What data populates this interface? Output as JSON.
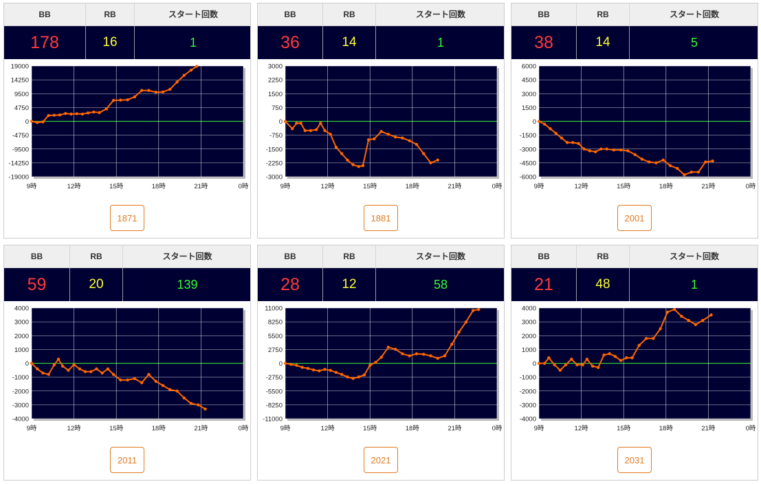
{
  "headers": {
    "bb": "BB",
    "rb": "RB",
    "start": "スタート回数"
  },
  "colors": {
    "bb": "#ff3b3b",
    "rb": "#ffff33",
    "start": "#33ff33",
    "series": "#ff6600",
    "zero_line": "#33cc33",
    "plot_bg": "#000033",
    "button": "#e07a1f"
  },
  "x_ticks": [
    "9時",
    "12時",
    "15時",
    "18時",
    "21時",
    "0時"
  ],
  "machines": [
    {
      "bb": "178",
      "rb": "16",
      "start": "1",
      "button": "1871"
    },
    {
      "bb": "36",
      "rb": "14",
      "start": "1",
      "button": "1881"
    },
    {
      "bb": "38",
      "rb": "14",
      "start": "5",
      "button": "2001"
    },
    {
      "bb": "59",
      "rb": "20",
      "start": "139",
      "button": "2011"
    },
    {
      "bb": "28",
      "rb": "12",
      "start": "58",
      "button": "2021"
    },
    {
      "bb": "21",
      "rb": "48",
      "start": "1",
      "button": "2031"
    }
  ],
  "chart_data": [
    {
      "type": "line",
      "x_unit": "hour",
      "xlim": [
        9,
        24
      ],
      "x_ticks": [
        "9時",
        "12時",
        "15時",
        "18時",
        "21時",
        "0時"
      ],
      "y_ticks": [
        "19000",
        "14250",
        "9500",
        "4750",
        "0",
        "-4750",
        "-9500",
        "-14250",
        "-19000"
      ],
      "ylim": [
        -19000,
        19000
      ],
      "series": [
        {
          "values": [
            [
              9,
              0
            ],
            [
              9.4,
              -400
            ],
            [
              9.8,
              -200
            ],
            [
              10.2,
              2000
            ],
            [
              10.6,
              2100
            ],
            [
              11,
              2200
            ],
            [
              11.4,
              2700
            ],
            [
              11.8,
              2500
            ],
            [
              12.2,
              2600
            ],
            [
              12.6,
              2500
            ],
            [
              13,
              2900
            ],
            [
              13.4,
              3200
            ],
            [
              13.8,
              3000
            ],
            [
              14.3,
              4300
            ],
            [
              14.8,
              7200
            ],
            [
              15.3,
              7300
            ],
            [
              15.8,
              7400
            ],
            [
              16.3,
              8400
            ],
            [
              16.8,
              10600
            ],
            [
              17.3,
              10600
            ],
            [
              17.8,
              10000
            ],
            [
              18.3,
              10100
            ],
            [
              18.8,
              11000
            ],
            [
              19.3,
              13500
            ],
            [
              19.8,
              15800
            ],
            [
              20.3,
              17600
            ],
            [
              20.7,
              18900
            ]
          ]
        }
      ]
    },
    {
      "type": "line",
      "x_unit": "hour",
      "xlim": [
        9,
        24
      ],
      "x_ticks": [
        "9時",
        "12時",
        "15時",
        "18時",
        "21時",
        "0時"
      ],
      "y_ticks": [
        "3000",
        "2250",
        "1500",
        "750",
        "0",
        "-750",
        "-1500",
        "-2250",
        "-3000"
      ],
      "ylim": [
        -3000,
        3000
      ],
      "series": [
        {
          "values": [
            [
              9,
              0
            ],
            [
              9.5,
              -400
            ],
            [
              9.8,
              -100
            ],
            [
              10.1,
              -100
            ],
            [
              10.4,
              -500
            ],
            [
              10.8,
              -500
            ],
            [
              11.2,
              -450
            ],
            [
              11.5,
              -100
            ],
            [
              11.8,
              -500
            ],
            [
              12.2,
              -700
            ],
            [
              12.6,
              -1400
            ],
            [
              13,
              -1750
            ],
            [
              13.4,
              -2100
            ],
            [
              13.8,
              -2350
            ],
            [
              14.2,
              -2450
            ],
            [
              14.5,
              -2400
            ],
            [
              14.9,
              -1000
            ],
            [
              15.3,
              -950
            ],
            [
              15.8,
              -550
            ],
            [
              16.3,
              -700
            ],
            [
              16.8,
              -850
            ],
            [
              17.3,
              -900
            ],
            [
              17.8,
              -1050
            ],
            [
              18.3,
              -1250
            ],
            [
              18.8,
              -1750
            ],
            [
              19.3,
              -2250
            ],
            [
              19.8,
              -2100
            ]
          ]
        }
      ]
    },
    {
      "type": "line",
      "x_unit": "hour",
      "xlim": [
        9,
        24
      ],
      "x_ticks": [
        "9時",
        "12時",
        "15時",
        "18時",
        "21時",
        "0時"
      ],
      "y_ticks": [
        "6000",
        "4500",
        "3000",
        "1500",
        "0",
        "-1500",
        "-3000",
        "-4500",
        "-6000"
      ],
      "ylim": [
        -6000,
        6000
      ],
      "series": [
        {
          "values": [
            [
              9,
              0
            ],
            [
              9.4,
              -300
            ],
            [
              9.8,
              -800
            ],
            [
              10.2,
              -1300
            ],
            [
              10.6,
              -1800
            ],
            [
              11,
              -2300
            ],
            [
              11.4,
              -2300
            ],
            [
              11.8,
              -2400
            ],
            [
              12.2,
              -3000
            ],
            [
              12.6,
              -3200
            ],
            [
              13,
              -3300
            ],
            [
              13.4,
              -3000
            ],
            [
              13.8,
              -3000
            ],
            [
              14.3,
              -3100
            ],
            [
              14.8,
              -3100
            ],
            [
              15.3,
              -3200
            ],
            [
              15.8,
              -3600
            ],
            [
              16.3,
              -4100
            ],
            [
              16.8,
              -4400
            ],
            [
              17.3,
              -4500
            ],
            [
              17.8,
              -4200
            ],
            [
              18.3,
              -4800
            ],
            [
              18.8,
              -5100
            ],
            [
              19.3,
              -5800
            ],
            [
              19.8,
              -5500
            ],
            [
              20.3,
              -5500
            ],
            [
              20.8,
              -4400
            ],
            [
              21.3,
              -4300
            ]
          ]
        }
      ]
    },
    {
      "type": "line",
      "x_unit": "hour",
      "xlim": [
        9,
        24
      ],
      "x_ticks": [
        "9時",
        "12時",
        "15時",
        "18時",
        "21時",
        "0時"
      ],
      "y_ticks": [
        "4000",
        "3000",
        "2000",
        "1000",
        "0",
        "-1000",
        "-2000",
        "-3000",
        "-4000"
      ],
      "ylim": [
        -4000,
        4000
      ],
      "series": [
        {
          "values": [
            [
              9,
              0
            ],
            [
              9.4,
              -400
            ],
            [
              9.8,
              -700
            ],
            [
              10.2,
              -800
            ],
            [
              10.6,
              -100
            ],
            [
              10.9,
              300
            ],
            [
              11.2,
              -200
            ],
            [
              11.6,
              -500
            ],
            [
              12,
              -100
            ],
            [
              12.4,
              -400
            ],
            [
              12.8,
              -600
            ],
            [
              13.2,
              -600
            ],
            [
              13.6,
              -400
            ],
            [
              14,
              -700
            ],
            [
              14.4,
              -400
            ],
            [
              14.8,
              -800
            ],
            [
              15.3,
              -1200
            ],
            [
              15.8,
              -1200
            ],
            [
              16.3,
              -1100
            ],
            [
              16.8,
              -1400
            ],
            [
              17.3,
              -800
            ],
            [
              17.8,
              -1300
            ],
            [
              18.3,
              -1600
            ],
            [
              18.8,
              -1900
            ],
            [
              19.3,
              -2000
            ],
            [
              19.8,
              -2500
            ],
            [
              20.3,
              -2900
            ],
            [
              20.8,
              -3000
            ],
            [
              21.3,
              -3300
            ]
          ]
        }
      ]
    },
    {
      "type": "line",
      "x_unit": "hour",
      "xlim": [
        9,
        24
      ],
      "x_ticks": [
        "9時",
        "12時",
        "15時",
        "18時",
        "21時",
        "0時"
      ],
      "y_ticks": [
        "11000",
        "8250",
        "5500",
        "2750",
        "0",
        "-2750",
        "-5500",
        "-8250",
        "-11000"
      ],
      "ylim": [
        -11000,
        11000
      ],
      "series": [
        {
          "values": [
            [
              9,
              0
            ],
            [
              9.4,
              -200
            ],
            [
              9.8,
              -400
            ],
            [
              10.2,
              -800
            ],
            [
              10.6,
              -1000
            ],
            [
              11,
              -1300
            ],
            [
              11.4,
              -1500
            ],
            [
              11.8,
              -1200
            ],
            [
              12.2,
              -1400
            ],
            [
              12.6,
              -1800
            ],
            [
              13,
              -2200
            ],
            [
              13.4,
              -2700
            ],
            [
              13.8,
              -3000
            ],
            [
              14.2,
              -2700
            ],
            [
              14.6,
              -2300
            ],
            [
              15,
              -400
            ],
            [
              15.4,
              200
            ],
            [
              15.8,
              1200
            ],
            [
              16.3,
              3200
            ],
            [
              16.8,
              2800
            ],
            [
              17.3,
              1900
            ],
            [
              17.8,
              1500
            ],
            [
              18.3,
              1900
            ],
            [
              18.8,
              1800
            ],
            [
              19.3,
              1500
            ],
            [
              19.8,
              1000
            ],
            [
              20.3,
              1500
            ],
            [
              20.8,
              3800
            ],
            [
              21.3,
              6200
            ],
            [
              21.8,
              8200
            ],
            [
              22.3,
              10500
            ],
            [
              22.7,
              10700
            ]
          ]
        }
      ]
    },
    {
      "type": "line",
      "x_unit": "hour",
      "xlim": [
        9,
        24
      ],
      "x_ticks": [
        "9時",
        "12時",
        "15時",
        "18時",
        "21時",
        "0時"
      ],
      "y_ticks": [
        "4000",
        "3000",
        "2000",
        "1000",
        "0",
        "-1000",
        "-2000",
        "-3000",
        "-4000"
      ],
      "ylim": [
        -4000,
        4000
      ],
      "series": [
        {
          "values": [
            [
              9,
              0
            ],
            [
              9.4,
              0
            ],
            [
              9.7,
              400
            ],
            [
              10.1,
              -100
            ],
            [
              10.5,
              -500
            ],
            [
              10.9,
              -100
            ],
            [
              11.3,
              300
            ],
            [
              11.7,
              -100
            ],
            [
              12.1,
              -100
            ],
            [
              12.4,
              300
            ],
            [
              12.8,
              -200
            ],
            [
              13.2,
              -300
            ],
            [
              13.6,
              600
            ],
            [
              14,
              700
            ],
            [
              14.4,
              500
            ],
            [
              14.8,
              200
            ],
            [
              15.2,
              400
            ],
            [
              15.6,
              400
            ],
            [
              16.1,
              1300
            ],
            [
              16.6,
              1800
            ],
            [
              17.1,
              1800
            ],
            [
              17.6,
              2500
            ],
            [
              18.1,
              3700
            ],
            [
              18.6,
              3900
            ],
            [
              19.1,
              3400
            ],
            [
              19.6,
              3100
            ],
            [
              20.1,
              2800
            ],
            [
              20.6,
              3100
            ],
            [
              21.2,
              3500
            ]
          ]
        }
      ]
    }
  ]
}
